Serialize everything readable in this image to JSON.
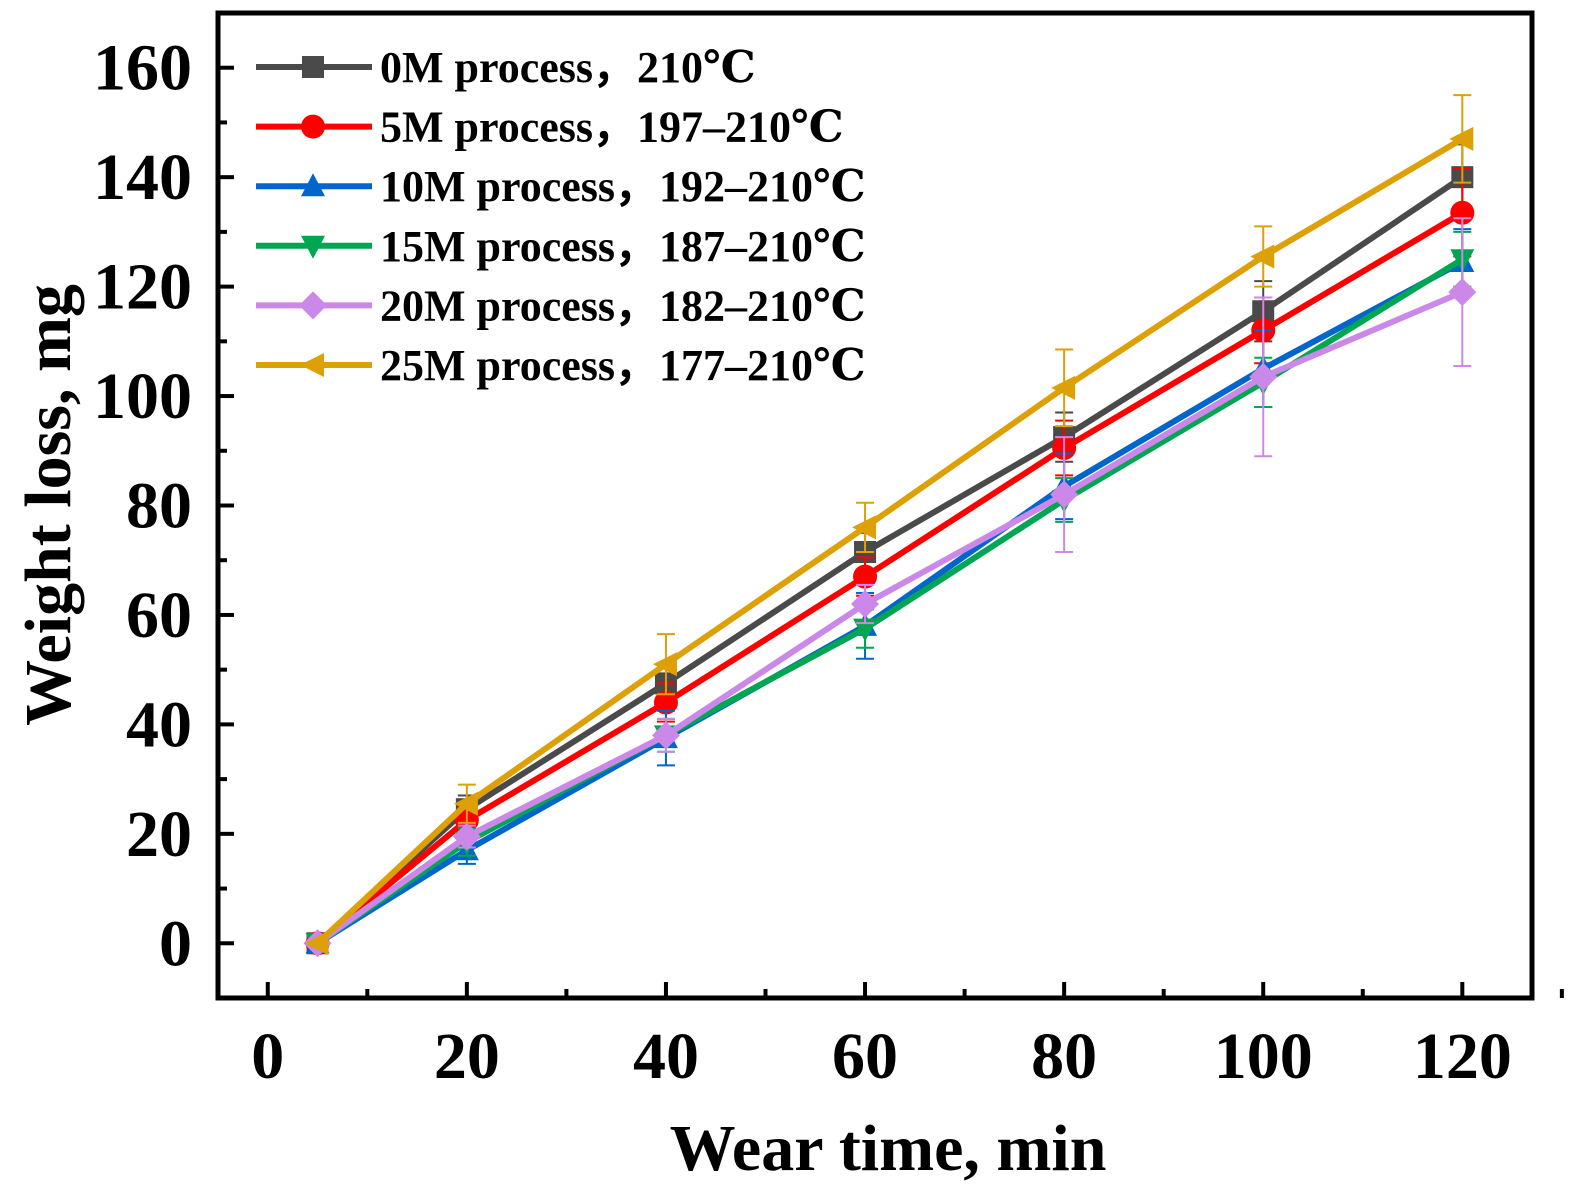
{
  "chart_data": {
    "type": "line",
    "xlabel": "Wear time, min",
    "ylabel": "Weight loss, mg",
    "x_ticks": [
      "0",
      "20",
      "40",
      "60",
      "80",
      "100",
      "120"
    ],
    "y_ticks": [
      "0",
      "20",
      "40",
      "60",
      "80",
      "100",
      "120",
      "140",
      "160"
    ],
    "xlim": [
      -5,
      127
    ],
    "ylim": [
      -10,
      170
    ],
    "grid": false,
    "legend_position": "top-left",
    "x": [
      5,
      20,
      40,
      60,
      80,
      100,
      120
    ],
    "series": [
      {
        "name": "0M   process，210℃",
        "color": "#4a4a4a",
        "marker": "square",
        "values": [
          0,
          24.5,
          47.5,
          71.5,
          92.5,
          115.5,
          140
        ],
        "errors": [
          0,
          2.5,
          3.5,
          3.5,
          4.5,
          5.5,
          6
        ]
      },
      {
        "name": "5M   process，197–210℃",
        "color": "#ff0000",
        "marker": "circle",
        "values": [
          0,
          22.5,
          44,
          67,
          90.5,
          112,
          133.5
        ],
        "errors": [
          0,
          2.5,
          3.5,
          3.5,
          5,
          6,
          8
        ]
      },
      {
        "name": "10M process，192–210℃",
        "color": "#0066cc",
        "marker": "triangle-up",
        "values": [
          0,
          17,
          37.5,
          58,
          83.5,
          105,
          124.5
        ],
        "errors": [
          0,
          2.5,
          5,
          6,
          6,
          7,
          6
        ]
      },
      {
        "name": "15M process，187–210℃",
        "color": "#00a651",
        "marker": "triangle-down",
        "values": [
          0,
          18.5,
          38,
          57.5,
          81,
          102.5,
          125
        ],
        "errors": [
          0,
          2.5,
          3,
          3.5,
          4,
          4.5,
          5
        ]
      },
      {
        "name": "20M process，182–210℃",
        "color": "#cc88e8",
        "marker": "diamond",
        "values": [
          0,
          19.5,
          38,
          62,
          82,
          103.5,
          119
        ],
        "errors": [
          0,
          2,
          3,
          3.5,
          10.5,
          14.5,
          13.5
        ]
      },
      {
        "name": "25M process，177–210℃",
        "color": "#dea007",
        "marker": "triangle-left",
        "values": [
          0,
          25.5,
          51,
          76,
          101.5,
          125.5,
          147
        ],
        "errors": [
          0,
          3.5,
          5.5,
          4.5,
          7,
          5.5,
          8
        ]
      }
    ]
  }
}
